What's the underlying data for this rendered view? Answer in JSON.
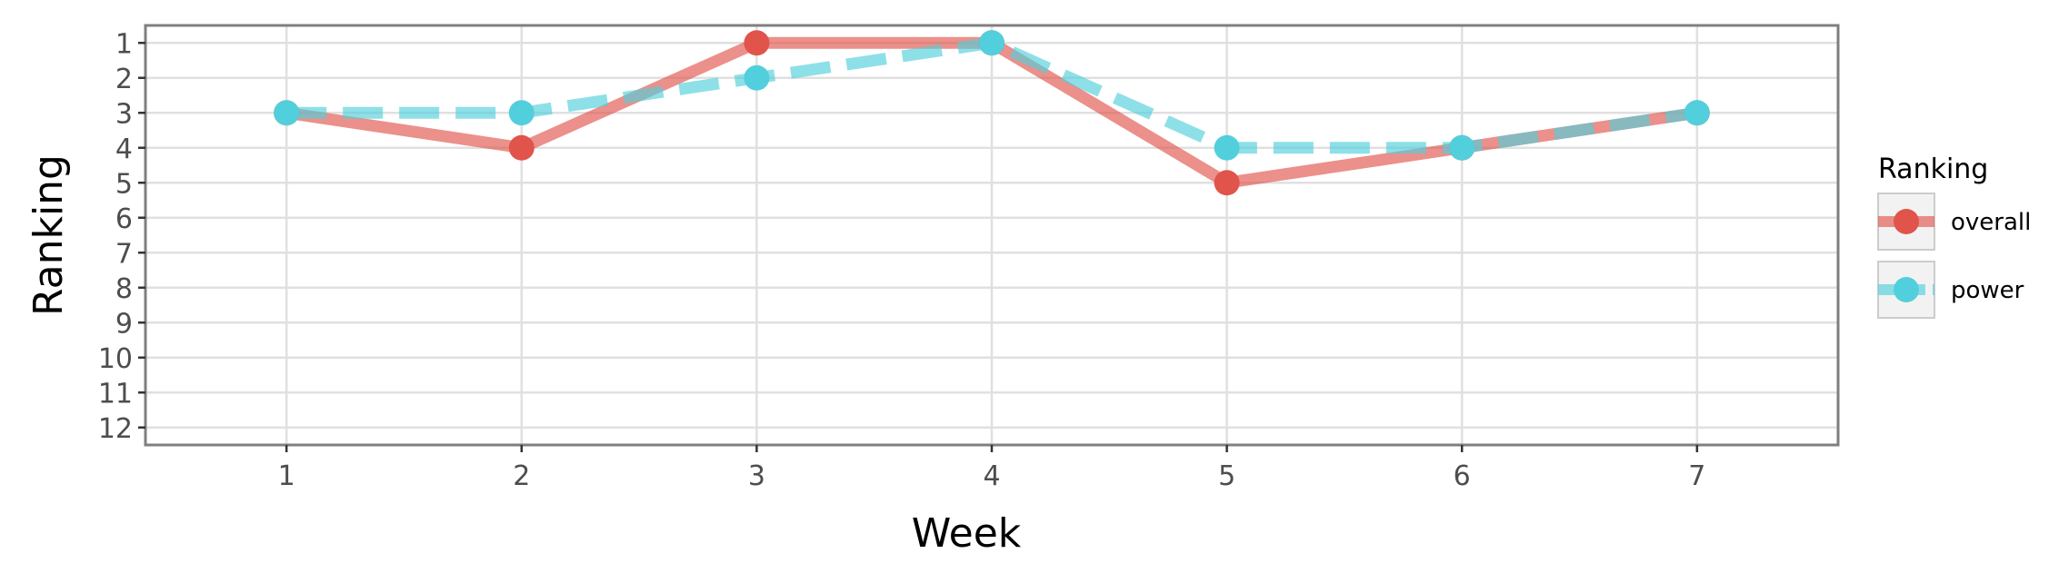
{
  "chart_data": {
    "type": "line",
    "x": [
      1,
      2,
      3,
      4,
      5,
      6,
      7
    ],
    "series": [
      {
        "name": "overall",
        "values": [
          3,
          4,
          1,
          1,
          5,
          4,
          3
        ],
        "color": "#e0544c",
        "dash": "solid"
      },
      {
        "name": "power",
        "values": [
          3,
          3,
          2,
          1,
          4,
          4,
          3
        ],
        "color": "#52cfdc",
        "dash": "dashed"
      }
    ],
    "xlabel": "Week",
    "ylabel": "Ranking",
    "xlim": [
      0.4,
      7.6
    ],
    "ylim": [
      12.5,
      0.5
    ],
    "y_reversed": true,
    "xticks": [
      1,
      2,
      3,
      4,
      5,
      6,
      7
    ],
    "yticks": [
      1,
      2,
      3,
      4,
      5,
      6,
      7,
      8,
      9,
      10,
      11,
      12
    ],
    "legend": {
      "title": "Ranking",
      "position": "right"
    },
    "grid": true
  }
}
